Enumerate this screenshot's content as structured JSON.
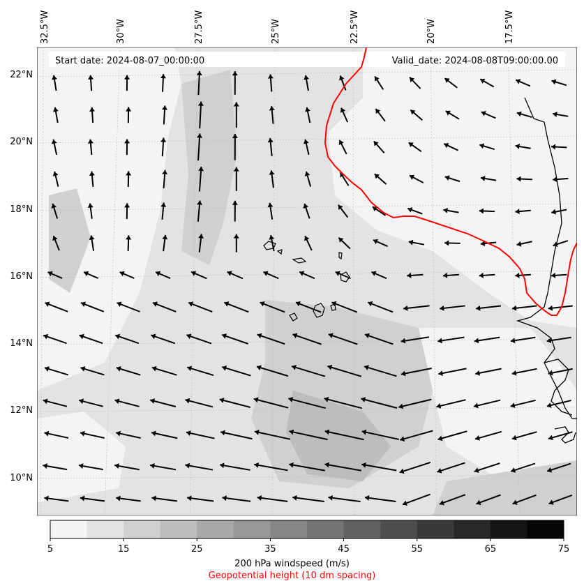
{
  "map": {
    "start_date_text": "Start date: 2024-08-07_00:00:00",
    "valid_date_text": "Valid_date: 2024-08-08T09:00:00.00",
    "lon_labels": [
      "32.5°W",
      "30°W",
      "27.5°W",
      "25°W",
      "22.5°W",
      "20°W",
      "17.5°W"
    ],
    "lat_labels": [
      "22°N",
      "20°N",
      "18°N",
      "16°N",
      "14°N",
      "12°N",
      "10°N"
    ],
    "colors": {
      "contour": "#ff0000",
      "coast": "#000000",
      "arrows": "#000000"
    }
  },
  "colorbar": {
    "ticks": [
      "5",
      "15",
      "25",
      "35",
      "45",
      "55",
      "65",
      "75"
    ],
    "label": "200 hPa windspeed (m/s)",
    "sublabel": "Geopotential height (10 dm spacing)",
    "sublabel_color": "#ff0000",
    "colors": [
      "#f4f4f4",
      "#e3e3e3",
      "#d0d0d0",
      "#bdbdbd",
      "#a9a9a9",
      "#989898",
      "#878787",
      "#747474",
      "#616161",
      "#4e4e4e",
      "#3a3a3a",
      "#282828",
      "#151515",
      "#050505"
    ]
  }
}
